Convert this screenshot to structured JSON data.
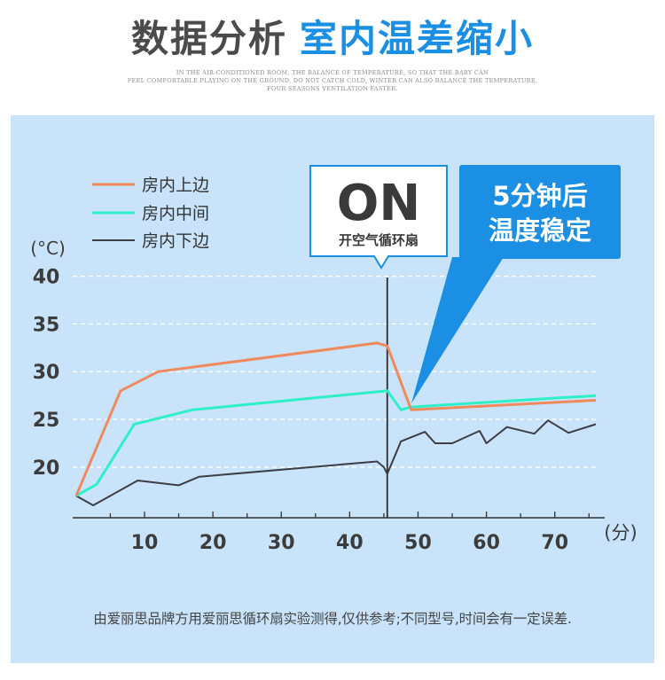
{
  "header": {
    "title_left": "数据分析",
    "title_right": "室内温差缩小",
    "subtitle_lines": [
      "IN THE AIR-CONDITIONED ROOM, THE BALANCE OF TEMPERATURE, SO THAT THE BABY CAN",
      "FEEL COMFORTABLE PLAYING ON THE GROUND, DO NOT CATCH COLD, WINTER CAN ALSO BALANCE THE TEMPERATURE,",
      "FOUR SEASONS VENTILATION FASTER."
    ]
  },
  "colors": {
    "panel_bg": "#c9e4fa",
    "series_top": "#f08a5d",
    "series_mid": "#2ef0c8",
    "series_bottom": "#3d3d45",
    "callout_blue": "#1a8fe3",
    "title_blue": "#1a8fe3"
  },
  "annotations": {
    "on_text": "ON",
    "on_sub": "开空气循环扇",
    "callout_line1": "5分钟后",
    "callout_line2": "温度稳定"
  },
  "chart_data": {
    "type": "line",
    "xlabel": "(分)",
    "ylabel": "(°C)",
    "x_ticks": [
      10,
      20,
      30,
      40,
      50,
      60,
      70
    ],
    "y_ticks": [
      20,
      25,
      30,
      35,
      40
    ],
    "xlim": [
      -0.5,
      76
    ],
    "ylim": [
      16,
      42
    ],
    "grid": "dashed horizontal",
    "legend_position": "top-left",
    "event_line_x": 45.5,
    "series": [
      {
        "name": "房内上边",
        "color": "#f08a5d",
        "x": [
          0,
          6.5,
          12,
          44,
          45.5,
          49,
          76
        ],
        "y": [
          17,
          28,
          30,
          33,
          32.7,
          26,
          27
        ]
      },
      {
        "name": "房内中间",
        "color": "#2ef0c8",
        "x": [
          0,
          3,
          8.5,
          17,
          45.5,
          47.5,
          49,
          76
        ],
        "y": [
          17,
          18.2,
          24.5,
          26,
          28,
          26,
          26.3,
          27.5
        ]
      },
      {
        "name": "房内下边",
        "color": "#3d3d45",
        "x": [
          0,
          2.5,
          9,
          15,
          18,
          44,
          45,
          45.5,
          47.5,
          51,
          52.5,
          55,
          59,
          60,
          63,
          67,
          69,
          72,
          76
        ],
        "y": [
          17,
          16,
          18.6,
          18.1,
          19,
          20.6,
          20,
          19.3,
          22.7,
          23.7,
          22.5,
          22.5,
          23.8,
          22.5,
          24.2,
          23.5,
          24.9,
          23.6,
          24.5
        ]
      }
    ]
  },
  "footnote": "由爱丽思品牌方用爱丽思循环扇实验测得,仅供参考;不同型号,时间会有一定误差."
}
